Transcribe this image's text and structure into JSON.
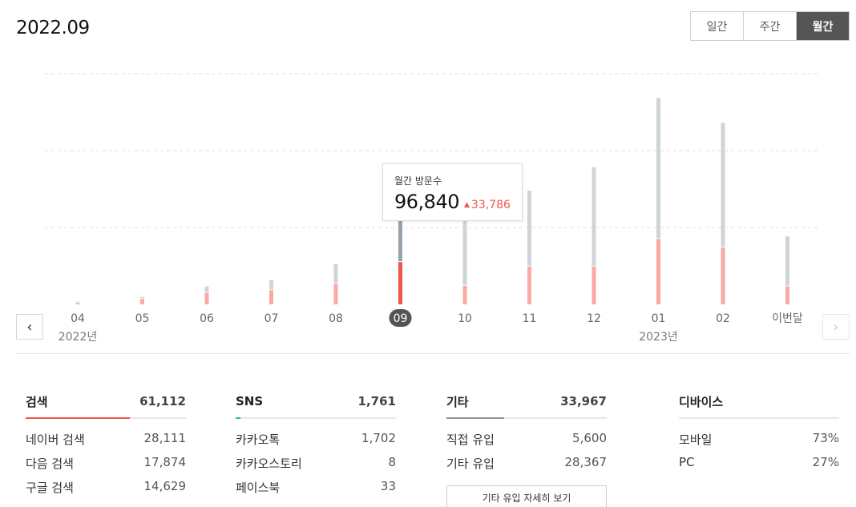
{
  "header": {
    "title": "2022.09"
  },
  "period_tabs": [
    {
      "label": "일간",
      "active": false
    },
    {
      "label": "주간",
      "active": false
    },
    {
      "label": "월간",
      "active": true
    }
  ],
  "tooltip": {
    "label": "월간 방문수",
    "value": "96,840",
    "delta": "33,786",
    "delta_arrow": "▲"
  },
  "nav": {
    "prev_icon": "‹",
    "next_icon": "›"
  },
  "colors": {
    "accent": "#f0564a",
    "bar_light": "#f9aaa2",
    "bar_prior": "#cfd4d8",
    "bar_prior_selected": "#98a2ad",
    "selected_badge": "#555555",
    "sns_accent": "#1ec29b",
    "etc_accent": "#8b9a98",
    "gridline": "#dddddd"
  },
  "chart_data": {
    "type": "bar",
    "categories": [
      "04",
      "05",
      "06",
      "07",
      "08",
      "09",
      "10",
      "11",
      "12",
      "01",
      "02",
      "이번달"
    ],
    "year_labels": [
      {
        "index": 0,
        "label": "2022년"
      },
      {
        "index": 9,
        "label": "2023년"
      }
    ],
    "selected_index": 5,
    "series": [
      {
        "name": "월간 방문수",
        "values": [
          2200,
          5900,
          14000,
          19000,
          31500,
          96840,
          73500,
          88800,
          107000,
          161000,
          141700,
          53000
        ]
      },
      {
        "values": [
          1100,
          4300,
          9000,
          11000,
          16000,
          33054,
          14500,
          29500,
          29500,
          51000,
          44300,
          14000
        ]
      }
    ],
    "ylim": [
      0,
      180000
    ],
    "grid_values": [
      60000,
      120000,
      180000
    ],
    "grid": true
  },
  "panels": [
    {
      "title": "검색",
      "total": "61,112",
      "bar_fill": 0.65,
      "bar_color": "#f0564a",
      "rows": [
        {
          "label": "네이버 검색",
          "value": "28,111"
        },
        {
          "label": "다음 검색",
          "value": "17,874"
        },
        {
          "label": "구글 검색",
          "value": "14,629"
        }
      ]
    },
    {
      "title": "SNS",
      "total": "1,761",
      "bar_fill": 0.03,
      "bar_color": "#1ec29b",
      "rows": [
        {
          "label": "카카오톡",
          "value": "1,702"
        },
        {
          "label": "카카오스토리",
          "value": "8"
        },
        {
          "label": "페이스북",
          "value": "33"
        }
      ]
    },
    {
      "title": "기타",
      "total": "33,967",
      "bar_fill": 0.36,
      "bar_color": "#8b9a98",
      "rows": [
        {
          "label": "직접 유입",
          "value": "5,600"
        },
        {
          "label": "기타 유입",
          "value": "28,367"
        }
      ],
      "button_label": "기타 유입 자세히 보기"
    },
    {
      "title": "디바이스",
      "rows": [
        {
          "label": "모바일",
          "value": "73%"
        },
        {
          "label": "PC",
          "value": "27%"
        }
      ]
    }
  ]
}
